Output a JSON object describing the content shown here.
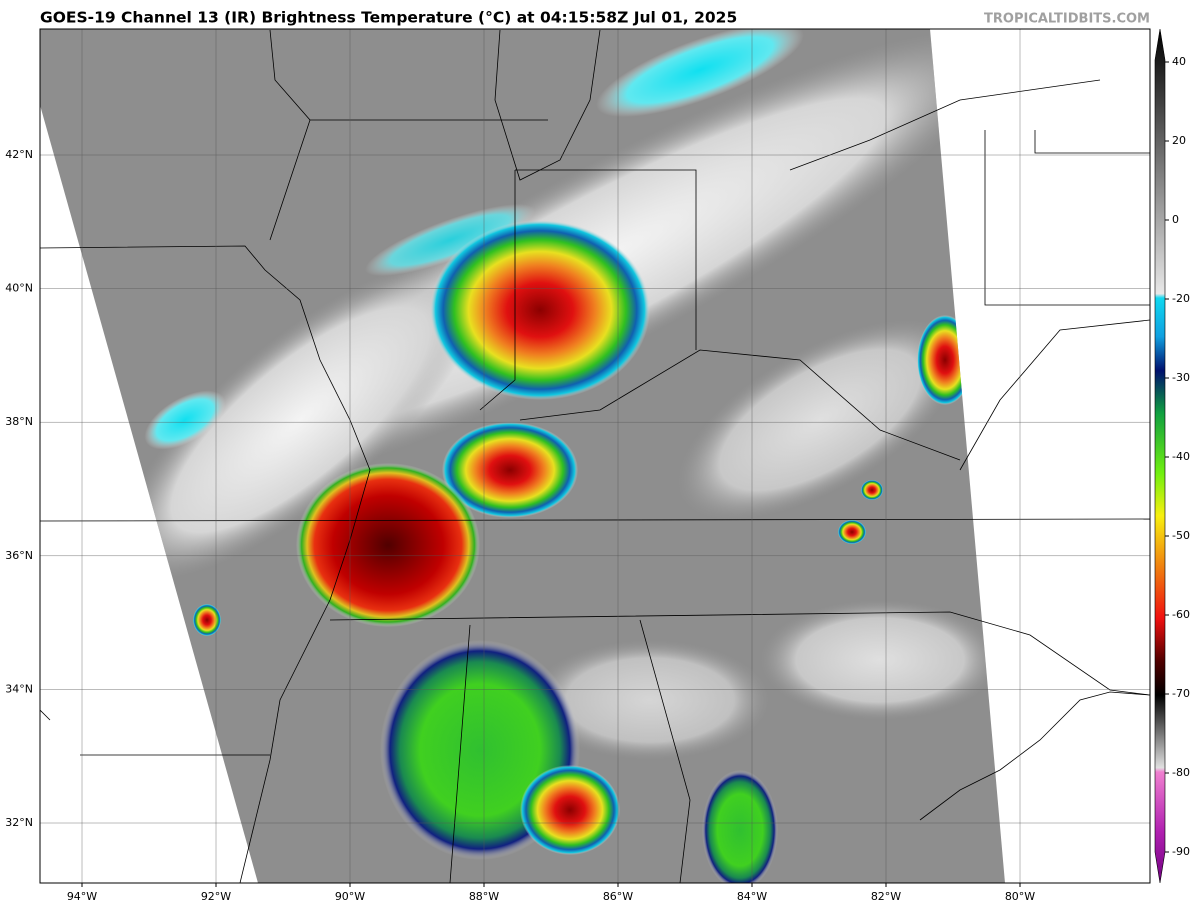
{
  "header": {
    "title": "GOES-19 Channel 13 (IR) Brightness Temperature (°C) at 04:15:58Z Jul 01, 2025",
    "watermark": "TROPICALTIDBITS.COM"
  },
  "map": {
    "latitude_labels": [
      "42°N",
      "40°N",
      "38°N",
      "36°N",
      "34°N",
      "32°N"
    ],
    "longitude_labels": [
      "94°W",
      "92°W",
      "90°W",
      "88°W",
      "86°W",
      "84°W",
      "82°W",
      "80°W"
    ]
  },
  "colorbar": {
    "ticks": [
      40,
      20,
      0,
      -20,
      -30,
      -40,
      -50,
      -60,
      -70,
      -80,
      -90
    ]
  }
}
